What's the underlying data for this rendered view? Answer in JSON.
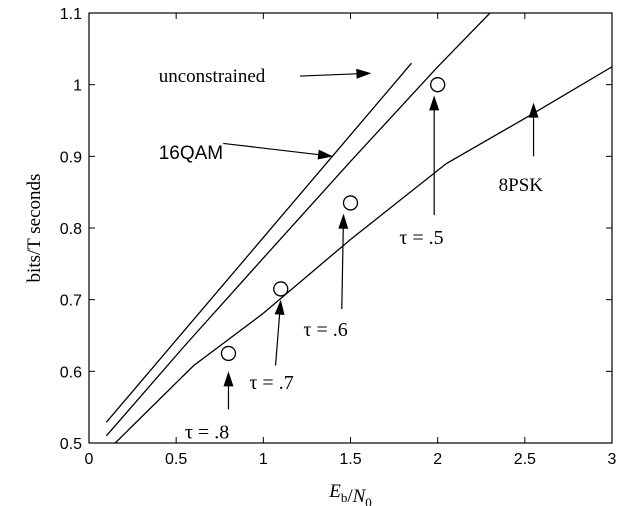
{
  "chart_data": {
    "type": "line",
    "xlabel": "E_b/N_0",
    "ylabel": "bits/T seconds",
    "xlim": [
      0,
      3
    ],
    "ylim": [
      0.5,
      1.1
    ],
    "xticks": [
      {
        "value": 0,
        "label": "0"
      },
      {
        "value": 0.5,
        "label": "0.5"
      },
      {
        "value": 1,
        "label": "1"
      },
      {
        "value": 1.5,
        "label": "1.5"
      },
      {
        "value": 2,
        "label": "2"
      },
      {
        "value": 2.5,
        "label": "2.5"
      },
      {
        "value": 3,
        "label": "3"
      }
    ],
    "yticks": [
      {
        "value": 0.5,
        "label": "0.5"
      },
      {
        "value": 0.6,
        "label": "0.6"
      },
      {
        "value": 0.7,
        "label": "0.7"
      },
      {
        "value": 0.8,
        "label": "0.8"
      },
      {
        "value": 0.9,
        "label": "0.9"
      },
      {
        "value": 1.0,
        "label": "1"
      },
      {
        "value": 1.1,
        "label": "1.1"
      }
    ],
    "grid": false,
    "series": [
      {
        "name": "unconstrained",
        "points": [
          [
            0.1,
            0.529
          ],
          [
            1.85,
            1.03
          ]
        ]
      },
      {
        "name": "16QAM",
        "points": [
          [
            0.1,
            0.51
          ],
          [
            0.55,
            0.636
          ],
          [
            1.0,
            0.758
          ],
          [
            1.5,
            0.893
          ],
          [
            2.0,
            1.025
          ],
          [
            2.3,
            1.1
          ]
        ]
      },
      {
        "name": "8PSK",
        "points": [
          [
            0.15,
            0.5
          ],
          [
            0.6,
            0.608
          ],
          [
            1.0,
            0.681
          ],
          [
            1.5,
            0.784
          ],
          [
            2.05,
            0.89
          ],
          [
            2.5,
            0.953
          ],
          [
            3.0,
            1.025
          ]
        ]
      }
    ],
    "markers": [
      {
        "x": 0.8,
        "y": 0.625,
        "label": "τ = .8"
      },
      {
        "x": 1.1,
        "y": 0.715,
        "label": "τ = .7"
      },
      {
        "x": 1.5,
        "y": 0.835,
        "label": "τ = .6"
      },
      {
        "x": 2.0,
        "y": 1.0,
        "label": "τ = .5"
      }
    ],
    "annotations": [
      {
        "text": "unconstrained",
        "font": "serif",
        "tx": 0.4,
        "ty": 1.012,
        "ax0": 1.21,
        "ay0": 1.012,
        "ax1": 1.62,
        "ay1": 1.016
      },
      {
        "text": "16QAM",
        "font": "sans",
        "tx": 0.4,
        "ty": 0.905,
        "ax0": 0.77,
        "ay0": 0.918,
        "ax1": 1.4,
        "ay1": 0.9
      },
      {
        "text": "8PSK",
        "font": "serif",
        "tx": 2.35,
        "ty": 0.86,
        "ax0": 2.55,
        "ay0": 0.9,
        "ax1": 2.55,
        "ay1": 0.975
      },
      {
        "text": "τ = .8",
        "font": "math",
        "tx": 0.55,
        "ty": 0.515,
        "ax0": 0.8,
        "ay0": 0.547,
        "ax1": 0.8,
        "ay1": 0.6
      }
    ],
    "marker_annotations": [
      {
        "tx": 0.92,
        "ty": 0.584,
        "ax0": 1.07,
        "ay0": 0.608,
        "ax1": 1.1,
        "ay1": 0.7
      },
      {
        "tx": 1.23,
        "ty": 0.658,
        "ax0": 1.45,
        "ay0": 0.687,
        "ax1": 1.46,
        "ay1": 0.82
      },
      {
        "tx": 1.78,
        "ty": 0.786,
        "ax0": 1.98,
        "ay0": 0.818,
        "ax1": 1.98,
        "ay1": 0.985
      }
    ]
  }
}
